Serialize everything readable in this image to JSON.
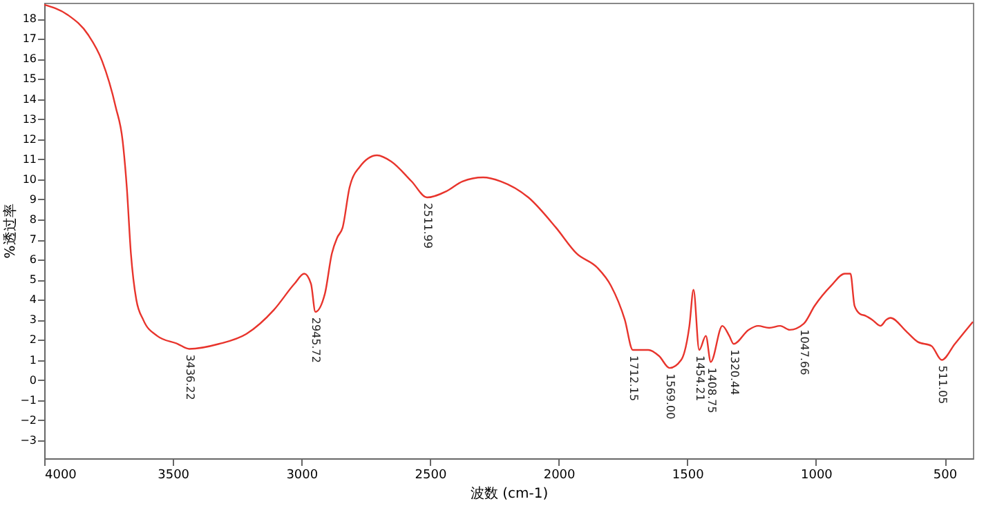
{
  "chart_data": {
    "type": "line",
    "xlabel": "波数 (cm-1)",
    "ylabel": "%透过率",
    "x": [
      4000,
      3909,
      3829,
      3775,
      3722,
      3695,
      3679,
      3663,
      3642,
      3615,
      3561,
      3481,
      3436,
      3321,
      3214,
      3107,
      3027,
      2989,
      2963,
      2946,
      2909,
      2882,
      2861,
      2840,
      2813,
      2775,
      2706,
      2652,
      2572,
      2512,
      2438,
      2374,
      2294,
      2225,
      2118,
      2011,
      1930,
      1850,
      1797,
      1743,
      1712,
      1652,
      1610,
      1569,
      1524,
      1492,
      1476,
      1454,
      1428,
      1409,
      1364,
      1337,
      1320,
      1262,
      1225,
      1182,
      1139,
      1102,
      1048,
      1005,
      941,
      888,
      866,
      850,
      829,
      807,
      781,
      749,
      727,
      711,
      647,
      604,
      551,
      511,
      460,
      422,
      390
    ],
    "series": [
      {
        "color": "#e8342c",
        "values": [
          18.7,
          18.2,
          17.2,
          15.9,
          13.6,
          11.9,
          9.6,
          6.3,
          4.0,
          3.0,
          2.2,
          1.8,
          1.55,
          1.8,
          2.3,
          3.5,
          4.8,
          5.3,
          4.8,
          3.4,
          4.3,
          6.3,
          7.1,
          7.6,
          9.6,
          10.6,
          11.2,
          10.9,
          9.9,
          9.1,
          9.4,
          9.9,
          10.1,
          9.9,
          9.1,
          7.6,
          6.3,
          5.6,
          4.7,
          3.0,
          1.5,
          1.5,
          1.2,
          0.6,
          1.0,
          2.7,
          4.5,
          1.5,
          2.2,
          0.9,
          2.7,
          2.2,
          1.8,
          2.5,
          2.7,
          2.6,
          2.7,
          2.5,
          2.8,
          3.7,
          4.7,
          5.3,
          5.3,
          3.7,
          3.3,
          3.2,
          3.0,
          2.7,
          3.0,
          3.1,
          2.4,
          1.9,
          1.7,
          1.0,
          1.8,
          2.4,
          2.9
        ]
      }
    ],
    "xlim": [
      4000,
      390
    ],
    "ylim": [
      -3.9,
      18.8
    ],
    "xticks": [
      4000,
      3500,
      3000,
      2500,
      2000,
      1500,
      1000,
      500
    ],
    "yticks": [
      -3,
      -2,
      -1,
      0,
      1,
      2,
      3,
      4,
      5,
      6,
      7,
      8,
      9,
      10,
      11,
      12,
      13,
      14,
      15,
      16,
      17,
      18
    ],
    "grid": false,
    "annotations": [
      {
        "text": "3436.22",
        "x": 3436,
        "y": 1.55
      },
      {
        "text": "2945.72",
        "x": 2946,
        "y": 3.4
      },
      {
        "text": "2511.99",
        "x": 2512,
        "y": 9.1
      },
      {
        "text": "1712.15",
        "x": 1712,
        "y": 1.5
      },
      {
        "text": "1569.00",
        "x": 1569,
        "y": 0.6
      },
      {
        "text": "1454.21",
        "x": 1454,
        "y": 1.5
      },
      {
        "text": "1408.75",
        "x": 1409,
        "y": 0.9
      },
      {
        "text": "1320.44",
        "x": 1320,
        "y": 1.8
      },
      {
        "text": "1047.66",
        "x": 1048,
        "y": 2.8
      },
      {
        "text": "511.05",
        "x": 511,
        "y": 1.0
      }
    ]
  }
}
